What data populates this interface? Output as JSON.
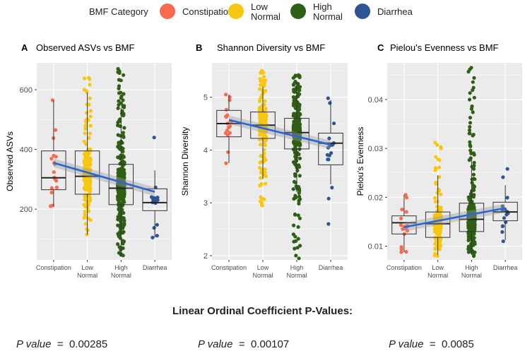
{
  "legend": {
    "title": "BMF Category",
    "items": [
      {
        "label_lines": [
          "Constipation"
        ],
        "color": "#F8694D"
      },
      {
        "label_lines": [
          "Low",
          "Normal"
        ],
        "color": "#F7C70F"
      },
      {
        "label_lines": [
          "High",
          "Normal"
        ],
        "color": "#2F5F14"
      },
      {
        "label_lines": [
          "Diarrhea"
        ],
        "color": "#2D5593"
      }
    ]
  },
  "chart_data": [
    {
      "type": "box-strip",
      "tag": "A",
      "title": "Observed ASVs vs BMF",
      "xlabel": "",
      "ylabel": "Observed ASVs",
      "ylim": [
        30,
        690
      ],
      "yticks": [
        200,
        400,
        600
      ],
      "categories": [
        [
          "Constipation"
        ],
        [
          "Low",
          "Normal"
        ],
        [
          "High",
          "Normal"
        ],
        [
          "Diarrhea"
        ]
      ],
      "boxes": [
        {
          "q1": 265,
          "median": 305,
          "q3": 395,
          "whisker_low": 210,
          "whisker_high": 565
        },
        {
          "q1": 250,
          "median": 310,
          "q3": 395,
          "whisker_low": 115,
          "whisker_high": 590
        },
        {
          "q1": 215,
          "median": 270,
          "q3": 350,
          "whisker_low": 45,
          "whisker_high": 540
        },
        {
          "q1": 195,
          "median": 222,
          "q3": 268,
          "whisker_low": 105,
          "whisker_high": 330
        }
      ],
      "point_ranges": [
        {
          "n": 18,
          "min": 210,
          "max": 565
        },
        {
          "n": 220,
          "min": 115,
          "max": 640
        },
        {
          "n": 420,
          "min": 45,
          "max": 670
        },
        {
          "n": 16,
          "min": 105,
          "max": 440
        }
      ],
      "trend": {
        "start": 355,
        "end": 258
      }
    },
    {
      "type": "box-strip",
      "tag": "B",
      "title": "Shannon Diversity vs BMF",
      "xlabel": "",
      "ylabel": "Shannon Diversity",
      "ylim": [
        1.92,
        5.65
      ],
      "yticks": [
        2,
        3,
        4,
        5
      ],
      "categories": [
        [
          "Constipation"
        ],
        [
          "Low",
          "Normal"
        ],
        [
          "High",
          "Normal"
        ],
        [
          "Diarrhea"
        ]
      ],
      "boxes": [
        {
          "q1": 4.25,
          "median": 4.5,
          "q3": 4.75,
          "whisker_low": 3.75,
          "whisker_high": 5.05
        },
        {
          "q1": 4.22,
          "median": 4.47,
          "q3": 4.72,
          "whisker_low": 3.45,
          "whisker_high": 5.2
        },
        {
          "q1": 4.02,
          "median": 4.33,
          "q3": 4.6,
          "whisker_low": 3.2,
          "whisker_high": 5.3
        },
        {
          "q1": 3.72,
          "median": 4.13,
          "q3": 4.32,
          "whisker_low": 3.35,
          "whisker_high": 4.95
        }
      ],
      "point_ranges": [
        {
          "n": 18,
          "min": 3.75,
          "max": 5.05
        },
        {
          "n": 220,
          "min": 2.95,
          "max": 5.5
        },
        {
          "n": 420,
          "min": 1.95,
          "max": 5.42
        },
        {
          "n": 16,
          "min": 2.6,
          "max": 4.98
        }
      ],
      "trend": {
        "start": 4.57,
        "end": 4.1
      }
    },
    {
      "type": "box-strip",
      "tag": "C",
      "title": "Pielou's Evenness vs BMF",
      "xlabel": "",
      "ylabel": "Pielou's Evenness",
      "ylim": [
        0.0072,
        0.0475
      ],
      "yticks": [
        0.01,
        0.02,
        0.03,
        0.04
      ],
      "categories": [
        [
          "Constipation"
        ],
        [
          "Low",
          "Normal"
        ],
        [
          "High",
          "Normal"
        ],
        [
          "Diarrhea"
        ]
      ],
      "boxes": [
        {
          "q1": 0.0125,
          "median": 0.0148,
          "q3": 0.0162,
          "whisker_low": 0.0088,
          "whisker_high": 0.0205
        },
        {
          "q1": 0.0118,
          "median": 0.0146,
          "q3": 0.017,
          "whisker_low": 0.0082,
          "whisker_high": 0.0245
        },
        {
          "q1": 0.013,
          "median": 0.0155,
          "q3": 0.0188,
          "whisker_low": 0.0082,
          "whisker_high": 0.028
        },
        {
          "q1": 0.0152,
          "median": 0.017,
          "q3": 0.019,
          "whisker_low": 0.0112,
          "whisker_high": 0.0225
        }
      ],
      "point_ranges": [
        {
          "n": 18,
          "min": 0.0088,
          "max": 0.0205
        },
        {
          "n": 220,
          "min": 0.008,
          "max": 0.0312
        },
        {
          "n": 420,
          "min": 0.008,
          "max": 0.0465
        },
        {
          "n": 16,
          "min": 0.011,
          "max": 0.0258
        }
      ],
      "trend": {
        "start": 0.0139,
        "end": 0.0178
      }
    }
  ],
  "footer": {
    "title": "Linear Ordinal Coefficient P-Values:",
    "pvalues": [
      {
        "label": "P value",
        "eq": "=",
        "value": "0.00285"
      },
      {
        "label": "P value",
        "eq": "=",
        "value": "0.00107"
      },
      {
        "label": "P value",
        "eq": "=",
        "value": "0.0085"
      }
    ]
  }
}
